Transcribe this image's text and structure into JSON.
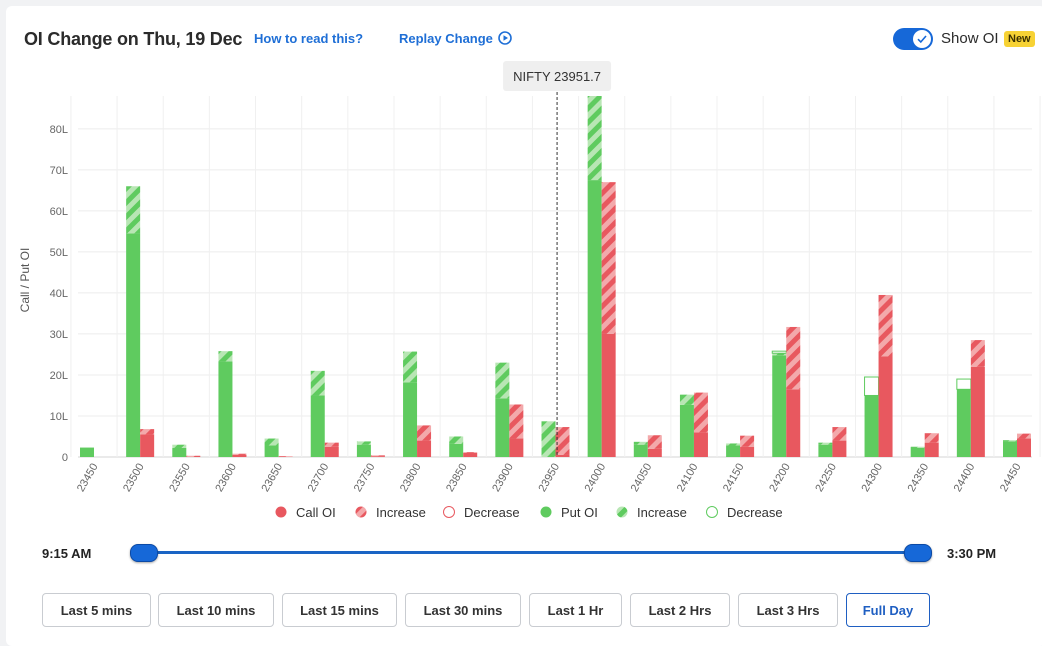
{
  "header": {
    "title": "OI Change on Thu, 19 Dec",
    "how_to_read": "How to read this?",
    "replay": "Replay Change",
    "show_oi_label": "Show OI",
    "show_oi_enabled": true,
    "badge": "New"
  },
  "colors": {
    "call": "#e8585f",
    "call_light": "#f3a9ab",
    "put": "#5fcb5f",
    "put_light": "#b8e6b4"
  },
  "slider": {
    "start_label": "9:15 AM",
    "end_label": "3:30 PM",
    "range_fraction": [
      0,
      1
    ]
  },
  "buttons": [
    "Last 5 mins",
    "Last 10 mins",
    "Last 15 mins",
    "Last 30 mins",
    "Last 1 Hr",
    "Last 2 Hrs",
    "Last 3 Hrs",
    "Full Day"
  ],
  "active_button": "Full Day",
  "chart_data": {
    "type": "bar",
    "ylabel": "Call / Put OI",
    "ylim": [
      0,
      88
    ],
    "yticks": [
      "0",
      "10L",
      "20L",
      "30L",
      "40L",
      "50L",
      "60L",
      "70L",
      "80L"
    ],
    "spot_label": "NIFTY 23951.7",
    "spot": 23951.7,
    "grid": true,
    "legend_position": "bottom",
    "legend": [
      "Call OI",
      "Increase",
      "Decrease",
      "Put OI",
      "Increase",
      "Decrease"
    ],
    "categories": [
      "23450",
      "23500",
      "23550",
      "23600",
      "23650",
      "23700",
      "23750",
      "23800",
      "23850",
      "23900",
      "23950",
      "24000",
      "24050",
      "24100",
      "24150",
      "24200",
      "24250",
      "24300",
      "24350",
      "24400",
      "24450"
    ],
    "series": [
      {
        "name": "Put OI",
        "values": [
          2.3,
          54.5,
          2.2,
          23.3,
          2.8,
          15.0,
          3.0,
          18.2,
          3.2,
          14.3,
          0.0,
          67.5,
          3.0,
          12.7,
          2.8,
          24.8,
          3.0,
          15.0,
          2.2,
          16.5,
          3.8
        ]
      },
      {
        "name": "Increase",
        "values": [
          0.0,
          11.5,
          0.8,
          2.5,
          1.7,
          6.0,
          0.8,
          7.5,
          1.8,
          8.7,
          8.7,
          20.5,
          0.7,
          2.5,
          0.5,
          0.5,
          0.5,
          0.0,
          0.3,
          0.0,
          0.3
        ]
      },
      {
        "name": "Decrease",
        "values": [
          0.0,
          0.0,
          0.0,
          0.0,
          0.0,
          0.0,
          0.0,
          0.0,
          0.0,
          0.0,
          0.0,
          0.0,
          0.0,
          0.0,
          0.0,
          0.5,
          0.0,
          4.5,
          0.0,
          2.5,
          0.0
        ]
      },
      {
        "name": "Call OI",
        "values": [
          0.0,
          5.5,
          0.0,
          0.5,
          0.0,
          2.5,
          0.2,
          4.0,
          1.0,
          4.5,
          0.5,
          30.0,
          2.0,
          6.0,
          2.5,
          16.5,
          4.0,
          24.5,
          3.5,
          22.0,
          4.5
        ]
      },
      {
        "name": "Increase",
        "values": [
          0.0,
          1.3,
          0.3,
          0.3,
          0.2,
          1.0,
          0.2,
          3.7,
          0.2,
          8.3,
          6.8,
          37.0,
          3.3,
          9.7,
          2.7,
          15.2,
          3.3,
          15.0,
          2.3,
          6.5,
          1.2
        ]
      },
      {
        "name": "Decrease",
        "values": [
          0.0,
          0.0,
          0.0,
          0.0,
          0.0,
          0.0,
          0.0,
          0.0,
          0.0,
          0.0,
          0.0,
          0.0,
          0.0,
          0.0,
          0.0,
          0.0,
          0.0,
          0.0,
          0.0,
          0.0,
          0.0
        ]
      }
    ]
  }
}
